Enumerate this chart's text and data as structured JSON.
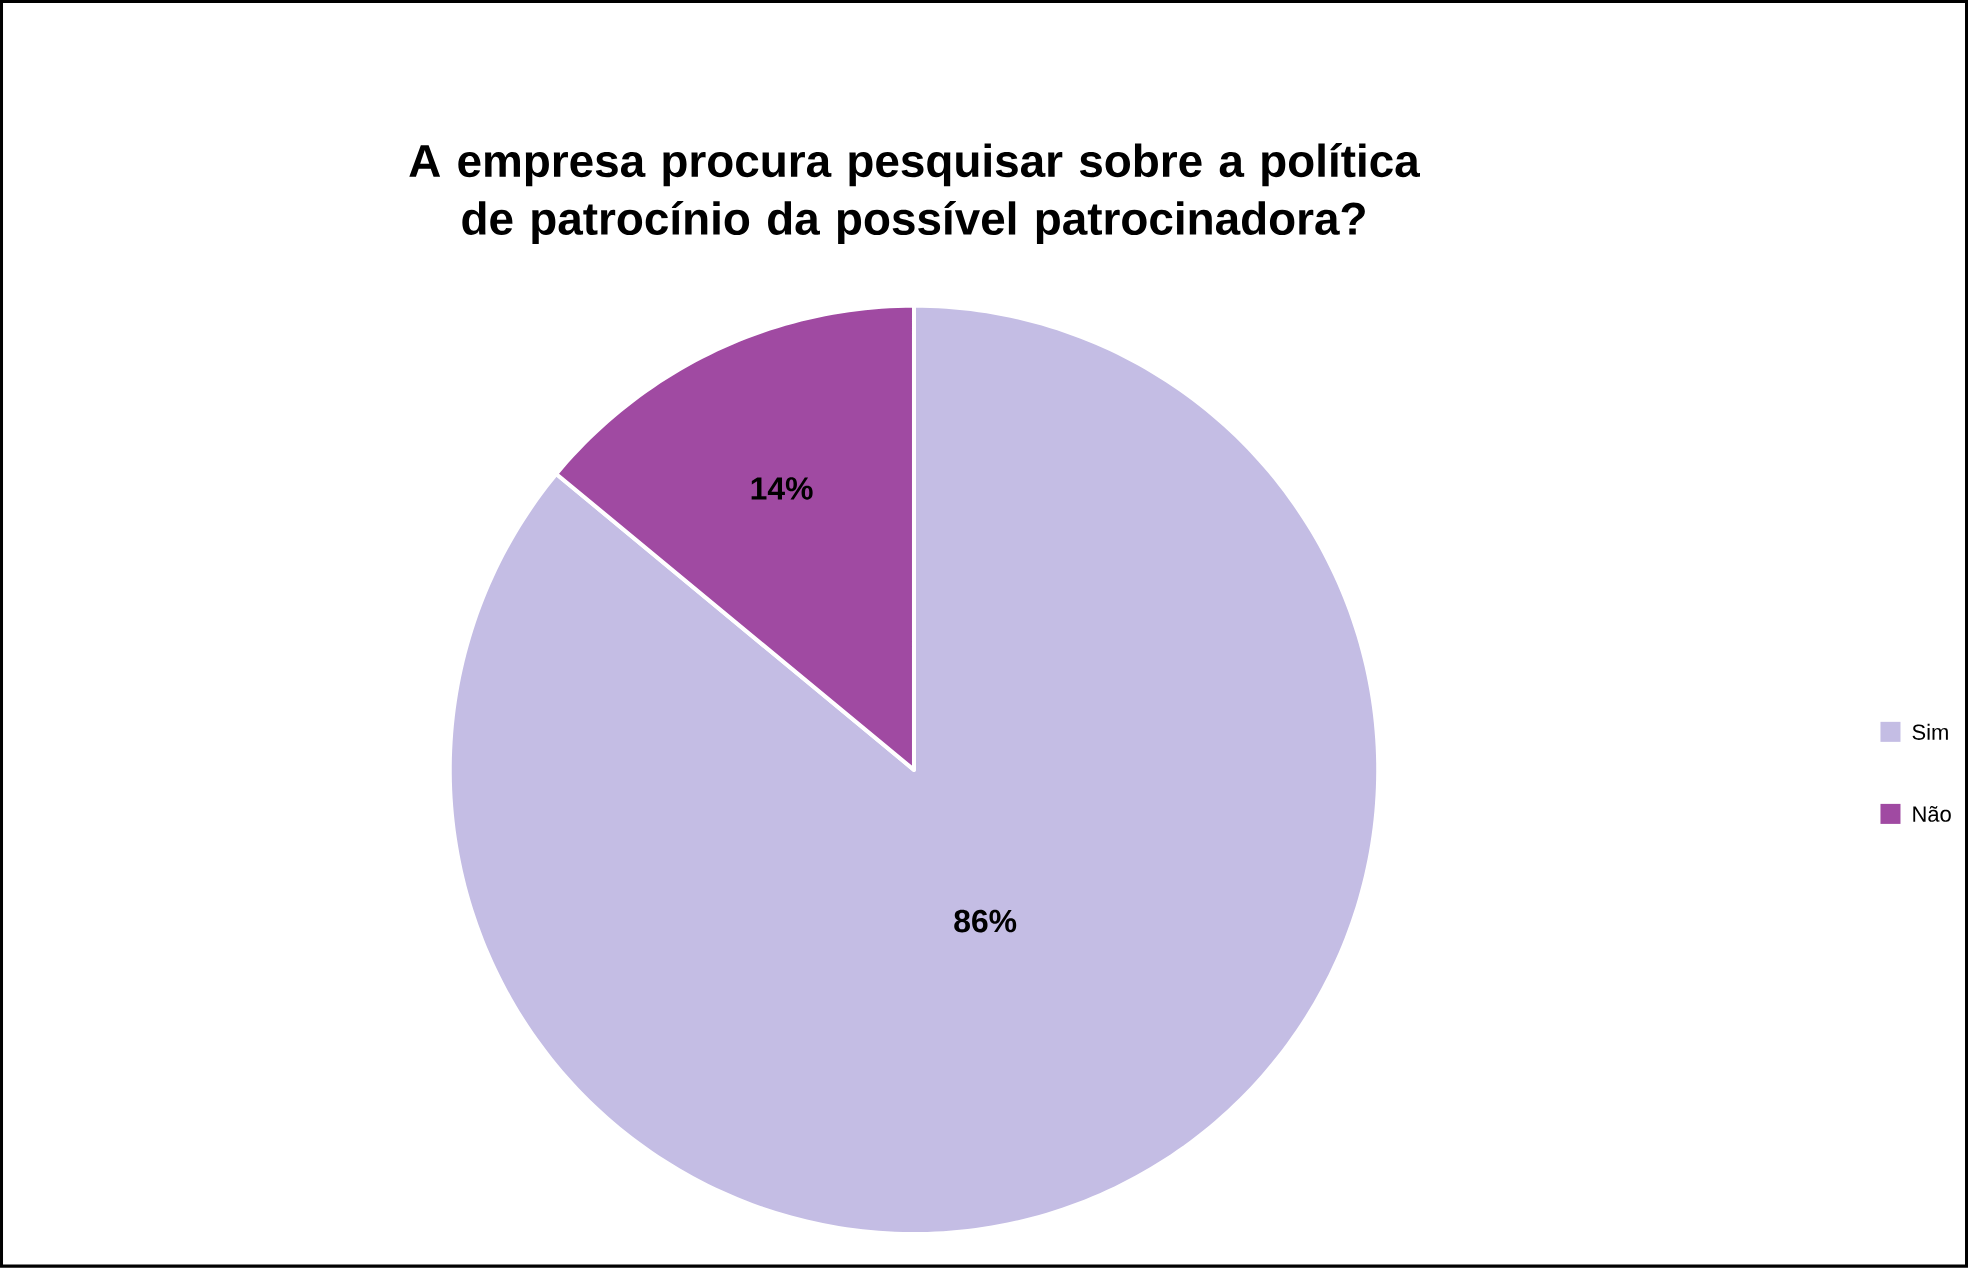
{
  "chart_data": {
    "type": "pie",
    "title": "A empresa procura pesquisar sobre a política de patrocínio da possível patrocinadora?",
    "categories": [
      "Sim",
      "Não"
    ],
    "values": [
      86,
      14
    ],
    "colors": [
      "#c4bde4",
      "#a04aa2"
    ],
    "value_labels": [
      "86%",
      "14%"
    ],
    "legend": "right"
  }
}
